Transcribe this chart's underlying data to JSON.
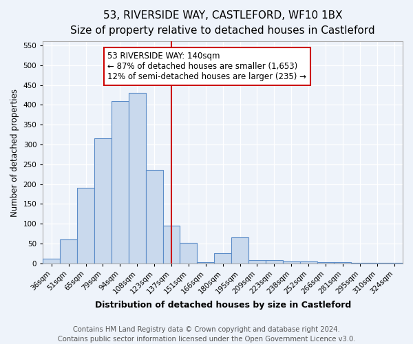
{
  "title": "53, RIVERSIDE WAY, CASTLEFORD, WF10 1BX",
  "subtitle": "Size of property relative to detached houses in Castleford",
  "xlabel": "Distribution of detached houses by size in Castleford",
  "ylabel": "Number of detached properties",
  "categories": [
    "36sqm",
    "51sqm",
    "65sqm",
    "79sqm",
    "94sqm",
    "108sqm",
    "123sqm",
    "137sqm",
    "151sqm",
    "166sqm",
    "180sqm",
    "195sqm",
    "209sqm",
    "223sqm",
    "238sqm",
    "252sqm",
    "266sqm",
    "281sqm",
    "295sqm",
    "310sqm",
    "324sqm"
  ],
  "values": [
    12,
    60,
    190,
    315,
    410,
    430,
    235,
    95,
    52,
    3,
    25,
    65,
    8,
    8,
    5,
    5,
    3,
    3,
    2,
    2,
    2
  ],
  "bar_color": "#c9d9ed",
  "bar_edge_color": "#5b8cc8",
  "vline_color": "#cc0000",
  "vline_index": 7,
  "annotation_title": "53 RIVERSIDE WAY: 140sqm",
  "annotation_line1": "← 87% of detached houses are smaller (1,653)",
  "annotation_line2": "12% of semi-detached houses are larger (235) →",
  "annotation_box_facecolor": "#ffffff",
  "annotation_box_edgecolor": "#cc0000",
  "footnote1": "Contains HM Land Registry data © Crown copyright and database right 2024.",
  "footnote2": "Contains public sector information licensed under the Open Government Licence v3.0.",
  "ylim_max": 560,
  "yticks": [
    0,
    50,
    100,
    150,
    200,
    250,
    300,
    350,
    400,
    450,
    500,
    550
  ],
  "fig_facecolor": "#eef3fa",
  "grid_color": "#ffffff",
  "title_fontsize": 11,
  "subtitle_fontsize": 9.5,
  "tick_fontsize": 7.5,
  "ylabel_fontsize": 8.5,
  "xlabel_fontsize": 9,
  "annot_fontsize": 8.5,
  "footnote_fontsize": 7.2
}
